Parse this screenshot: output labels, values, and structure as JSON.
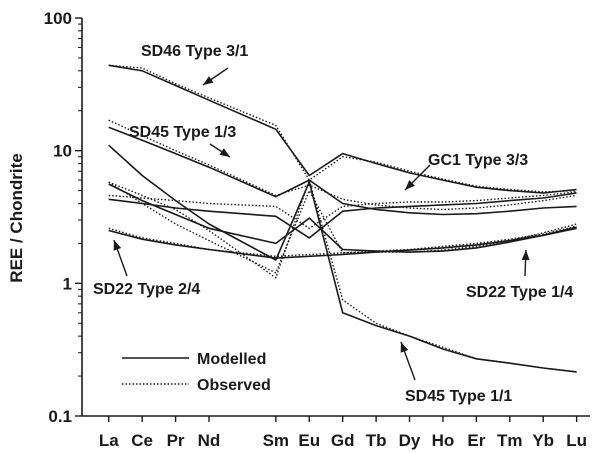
{
  "chart_data": {
    "type": "line",
    "ylabel": "REE / Chondrite",
    "xlabel": "",
    "yscale": "log",
    "ylim": [
      0.1,
      100
    ],
    "yticks": [
      "0.1",
      "1",
      "10",
      "100"
    ],
    "categories": [
      "La",
      "Ce",
      "Pr",
      "Nd",
      "Sm",
      "Eu",
      "Gd",
      "Tb",
      "Dy",
      "Ho",
      "Er",
      "Tm",
      "Yb",
      "Lu"
    ],
    "category_positions": [
      57,
      58,
      59,
      60,
      62,
      63,
      64,
      65,
      66,
      67,
      68,
      69,
      70,
      71
    ],
    "legend": {
      "placement": "bottom-left",
      "modelled_label": "Modelled",
      "observed_label": "Observed"
    },
    "line_color": "#1a1a1a",
    "annotations": [
      {
        "text": "SD46 Type 3/1"
      },
      {
        "text": "SD45 Type 1/3"
      },
      {
        "text": "GC1 Type 3/3"
      },
      {
        "text": "SD22 Type 2/4"
      },
      {
        "text": "SD22 Type 1/4"
      },
      {
        "text": "SD45 Type 1/1"
      }
    ],
    "series": [
      {
        "kind": "modelled",
        "values": [
          44,
          40,
          31,
          24,
          14.5,
          6.5,
          9.5,
          8.0,
          6.8,
          6.0,
          5.3,
          5.0,
          4.8,
          5.1
        ]
      },
      {
        "kind": "observed",
        "values": [
          44,
          42,
          32,
          25,
          15.5,
          6.0,
          9.0,
          8.2,
          7.0,
          6.1,
          5.4,
          5.1,
          4.9,
          5.0
        ]
      },
      {
        "kind": "modelled",
        "values": [
          15,
          12.0,
          9.5,
          7.5,
          4.5,
          6.0,
          4.0,
          3.6,
          3.4,
          3.3,
          3.35,
          3.5,
          3.7,
          3.8
        ]
      },
      {
        "kind": "observed",
        "values": [
          17,
          13.0,
          10.0,
          7.8,
          4.6,
          5.5,
          4.3,
          3.9,
          3.7,
          3.6,
          3.7,
          3.9,
          4.2,
          4.6
        ]
      },
      {
        "kind": "modelled",
        "values": [
          4.3,
          4.0,
          3.7,
          3.5,
          3.2,
          2.2,
          3.5,
          3.7,
          3.8,
          3.9,
          4.0,
          4.2,
          4.4,
          4.8
        ]
      },
      {
        "kind": "observed",
        "values": [
          4.6,
          4.4,
          4.2,
          4.0,
          3.8,
          2.6,
          3.8,
          4.0,
          4.1,
          4.1,
          4.2,
          4.4,
          4.6,
          4.9
        ]
      },
      {
        "kind": "modelled",
        "values": [
          11,
          6.5,
          4.2,
          2.8,
          1.5,
          5.8,
          0.6,
          0.48,
          0.4,
          0.32,
          0.27,
          0.25,
          0.23,
          0.215
        ]
      },
      {
        "kind": "observed",
        "values": [
          5.8,
          4.6,
          3.6,
          2.5,
          1.1,
          6.0,
          0.75,
          0.5,
          0.4,
          0.33,
          0.27,
          0.25,
          0.23,
          0.215
        ]
      },
      {
        "kind": "modelled",
        "values": [
          2.5,
          2.15,
          1.95,
          1.8,
          1.55,
          1.6,
          1.65,
          1.72,
          1.78,
          1.85,
          1.95,
          2.1,
          2.3,
          2.6
        ]
      },
      {
        "kind": "observed",
        "values": [
          2.6,
          2.2,
          2.0,
          1.8,
          1.6,
          1.65,
          1.7,
          1.75,
          1.8,
          1.9,
          2.0,
          2.15,
          2.35,
          2.7
        ]
      },
      {
        "kind": "modelled",
        "values": [
          5.6,
          4.2,
          3.3,
          2.6,
          2.0,
          3.1,
          1.8,
          1.75,
          1.72,
          1.75,
          1.85,
          2.05,
          2.3,
          2.65
        ]
      },
      {
        "kind": "observed",
        "values": [
          5.8,
          4.0,
          2.8,
          2.1,
          1.2,
          5.0,
          1.7,
          1.72,
          1.72,
          1.78,
          1.9,
          2.1,
          2.4,
          2.8
        ]
      }
    ]
  }
}
